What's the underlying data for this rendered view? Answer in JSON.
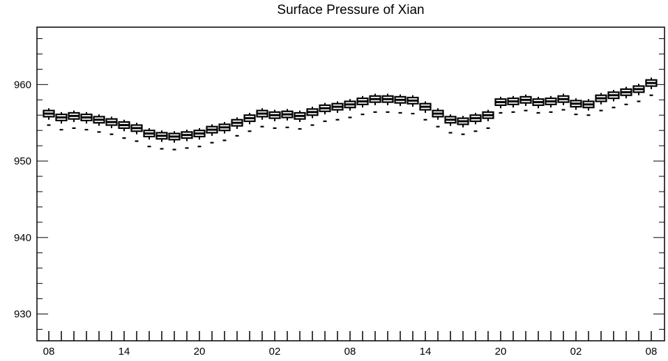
{
  "chart_data": {
    "type": "box",
    "title": "Surface Pressure of Xian",
    "xlabel": "",
    "ylabel": "",
    "ylim": [
      926.5,
      967.5
    ],
    "yticks": [
      930,
      940,
      950,
      960
    ],
    "ytick_labels": [
      "930",
      "940",
      "950",
      "960"
    ],
    "xtick_labels": [
      {
        "index": 0,
        "label": "08"
      },
      {
        "index": 6,
        "label": "14"
      },
      {
        "index": 12,
        "label": "20"
      },
      {
        "index": 18,
        "label": "02"
      },
      {
        "index": 24,
        "label": "08"
      },
      {
        "index": 30,
        "label": "14"
      },
      {
        "index": 36,
        "label": "20"
      },
      {
        "index": 42,
        "label": "02"
      },
      {
        "index": 48,
        "label": "08"
      }
    ],
    "grid": false,
    "medians": [
      956.2,
      955.7,
      955.9,
      955.7,
      955.4,
      955.1,
      954.7,
      954.3,
      953.6,
      953.3,
      953.2,
      953.4,
      953.6,
      954.1,
      954.4,
      955.0,
      955.6,
      956.2,
      956.0,
      956.1,
      955.9,
      956.4,
      956.9,
      957.1,
      957.4,
      957.8,
      958.1,
      958.1,
      958.0,
      957.9,
      957.1,
      956.2,
      955.4,
      955.2,
      955.6,
      956.0,
      957.7,
      957.8,
      958.0,
      957.7,
      957.8,
      958.1,
      957.5,
      957.4,
      958.2,
      958.6,
      959.0,
      959.4,
      960.2
    ],
    "series": [
      {
        "q1": [
          955.8,
          955.3,
          955.5,
          955.3,
          955.0,
          954.7,
          954.3,
          953.9,
          953.2,
          952.9,
          952.8,
          953.0,
          953.2,
          953.7,
          954.0,
          954.6,
          955.2,
          955.8,
          955.6,
          955.7,
          955.5,
          956.0,
          956.5,
          956.7,
          957.0,
          957.4,
          957.7,
          957.7,
          957.6,
          957.5,
          956.7,
          955.8,
          955.0,
          954.8,
          955.2,
          955.6,
          957.3,
          957.4,
          957.6,
          957.3,
          957.4,
          957.7,
          957.1,
          957.0,
          957.8,
          958.2,
          958.6,
          959.0,
          959.8
        ],
        "q3": [
          956.6,
          956.1,
          956.3,
          956.1,
          955.8,
          955.5,
          955.1,
          954.7,
          954.0,
          953.7,
          953.6,
          953.8,
          954.0,
          954.5,
          954.8,
          955.4,
          956.0,
          956.6,
          956.4,
          956.5,
          956.3,
          956.8,
          957.3,
          957.5,
          957.8,
          958.2,
          958.5,
          958.5,
          958.4,
          958.3,
          957.5,
          956.6,
          955.8,
          955.6,
          956.0,
          956.4,
          958.1,
          958.2,
          958.4,
          958.1,
          958.2,
          958.5,
          957.9,
          957.8,
          958.6,
          959.0,
          959.4,
          959.8,
          960.6
        ],
        "whisker_low": [
          955.4,
          954.9,
          955.1,
          954.9,
          954.6,
          954.3,
          953.9,
          953.5,
          952.8,
          952.5,
          952.4,
          952.6,
          952.8,
          953.3,
          953.6,
          954.2,
          954.8,
          955.4,
          955.2,
          955.3,
          955.1,
          955.6,
          956.1,
          956.3,
          956.6,
          957.0,
          957.3,
          957.3,
          957.2,
          957.1,
          956.3,
          955.4,
          954.6,
          954.4,
          954.8,
          955.2,
          956.9,
          957.0,
          957.2,
          956.9,
          957.0,
          957.3,
          956.7,
          956.6,
          957.4,
          957.8,
          958.2,
          958.6,
          959.4
        ],
        "whisker_high": [
          956.9,
          956.4,
          956.6,
          956.4,
          956.1,
          955.8,
          955.4,
          955.0,
          954.3,
          954.0,
          953.9,
          954.1,
          954.3,
          954.8,
          955.1,
          955.7,
          956.3,
          956.9,
          956.7,
          956.8,
          956.6,
          957.1,
          957.6,
          957.8,
          958.1,
          958.5,
          958.8,
          958.8,
          958.7,
          958.6,
          957.8,
          956.9,
          956.1,
          955.9,
          956.3,
          956.7,
          958.4,
          958.5,
          958.7,
          958.4,
          958.5,
          958.8,
          958.2,
          958.1,
          958.9,
          959.3,
          959.7,
          960.1,
          960.9
        ],
        "outlier_low": [
          954.7,
          954.1,
          954.3,
          954.1,
          953.8,
          953.5,
          953.0,
          952.6,
          951.9,
          951.6,
          951.5,
          951.7,
          951.9,
          952.4,
          952.7,
          953.3,
          953.9,
          954.5,
          954.3,
          954.4,
          954.2,
          954.7,
          955.2,
          955.4,
          955.7,
          956.1,
          956.4,
          956.4,
          956.3,
          956.2,
          955.4,
          954.5,
          953.7,
          953.5,
          953.9,
          954.3,
          956.3,
          956.4,
          956.6,
          956.3,
          956.4,
          956.7,
          956.1,
          956.0,
          956.6,
          957.0,
          957.4,
          957.8,
          958.6
        ]
      }
    ]
  }
}
